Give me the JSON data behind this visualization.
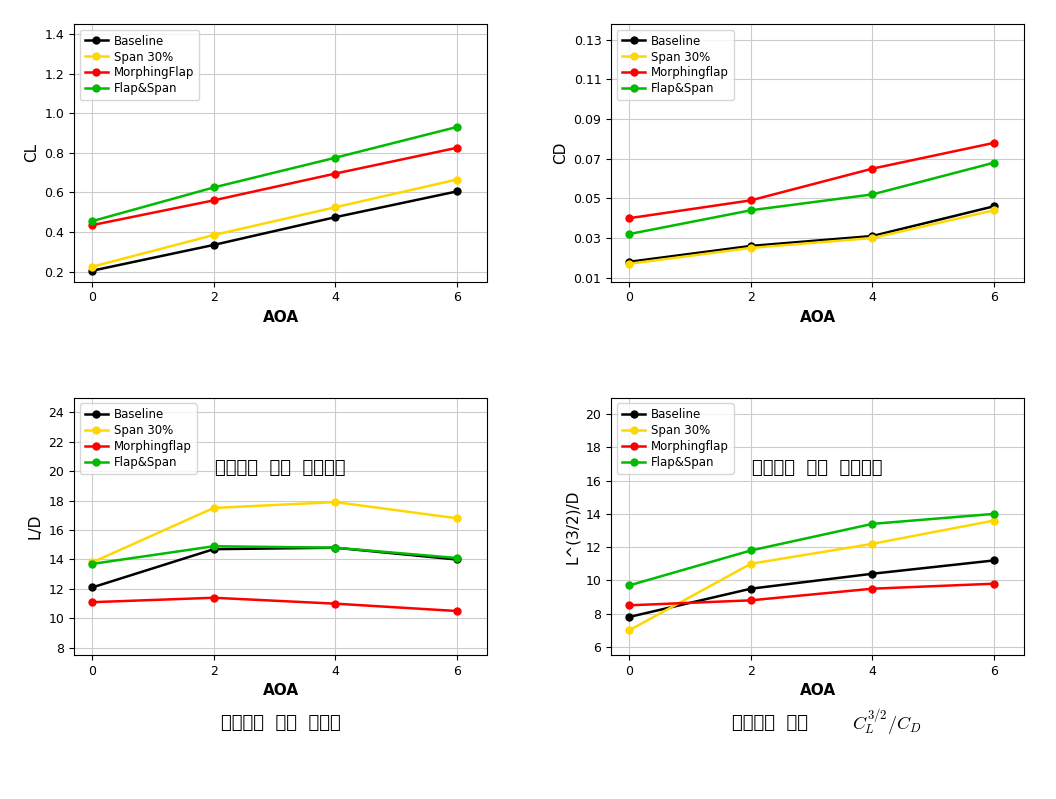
{
  "aoa": [
    0,
    2,
    4,
    6
  ],
  "cl": {
    "Baseline": [
      0.205,
      0.335,
      0.475,
      0.605
    ],
    "Span 30%": [
      0.225,
      0.385,
      0.525,
      0.665
    ],
    "MorphingFlap": [
      0.435,
      0.56,
      0.695,
      0.825
    ],
    "Flap&Span": [
      0.455,
      0.625,
      0.775,
      0.93
    ]
  },
  "cd": {
    "Baseline": [
      0.018,
      0.026,
      0.031,
      0.046
    ],
    "Span 30%": [
      0.017,
      0.025,
      0.03,
      0.044
    ],
    "Morphingflap": [
      0.04,
      0.049,
      0.065,
      0.078
    ],
    "Flap&Span": [
      0.032,
      0.044,
      0.052,
      0.068
    ]
  },
  "ld": {
    "Baseline": [
      12.1,
      14.7,
      14.8,
      14.0
    ],
    "Span 30%": [
      13.8,
      17.5,
      17.9,
      16.8
    ],
    "Morphingflap": [
      11.1,
      11.4,
      11.0,
      10.5
    ],
    "Flap&Span": [
      13.7,
      14.9,
      14.8,
      14.1
    ]
  },
  "cl32cd": {
    "Baseline": [
      7.8,
      9.5,
      10.4,
      11.2
    ],
    "Span 30%": [
      7.0,
      11.0,
      12.2,
      13.6
    ],
    "Morphingflap": [
      8.5,
      8.8,
      9.5,
      9.8
    ],
    "Flap&Span": [
      9.7,
      11.8,
      13.4,
      14.0
    ]
  },
  "colors": {
    "Baseline": "#000000",
    "Span 30%": "#FFD700",
    "MorphingFlap": "#FF0000",
    "Morphingflap": "#FF0000",
    "Flap&Span": "#00BB00"
  },
  "cl_ylim": [
    0.15,
    1.45
  ],
  "cl_yticks": [
    0.2,
    0.4,
    0.6,
    0.8,
    1.0,
    1.2,
    1.4
  ],
  "cd_ylim": [
    0.008,
    0.138
  ],
  "cd_yticks": [
    0.01,
    0.03,
    0.05,
    0.07,
    0.09,
    0.11,
    0.13
  ],
  "ld_ylim": [
    7.5,
    25
  ],
  "ld_yticks": [
    8,
    10,
    12,
    14,
    16,
    18,
    20,
    22,
    24
  ],
  "cl32_ylim": [
    5.5,
    21
  ],
  "cl32_yticks": [
    6,
    8,
    10,
    12,
    14,
    16,
    18,
    20
  ],
  "xlabel": "AOA",
  "cl_ylabel": "CL",
  "cd_ylabel": "CD",
  "ld_ylabel": "L/D",
  "cl32_ylabel": "L^(3/2)/D",
  "subtitle_cl": "받음각에  따른  양력계수",
  "subtitle_cd": "받음각에  따른  항력계수",
  "subtitle_ld": "받음각에  따른  양항비",
  "subtitle_cl32": "받음각에  따른  ",
  "marker": "o",
  "linewidth": 1.8,
  "markersize": 5,
  "bg": "#FFFFFF",
  "grid_color": "#CCCCCC"
}
